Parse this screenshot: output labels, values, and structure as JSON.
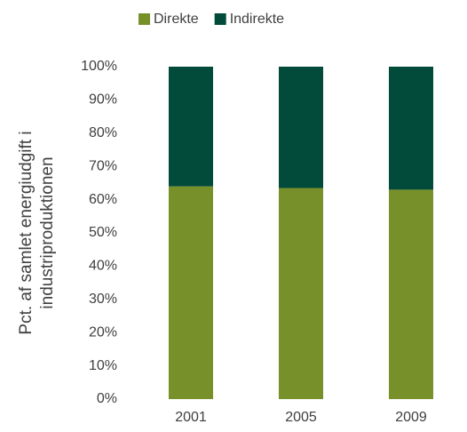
{
  "chart_data": {
    "type": "stacked_bar",
    "ylabel": [
      "Pct. af samlet energiudgift i",
      "industriproduktionen"
    ],
    "categories": [
      "2001",
      "2005",
      "2009"
    ],
    "series": [
      {
        "name": "Direkte",
        "color": "#77902a",
        "values": [
          64,
          63.5,
          63
        ]
      },
      {
        "name": "Indirekte",
        "color": "#024a3a",
        "values": [
          36,
          36.5,
          37
        ]
      }
    ],
    "ylim": [
      0,
      100
    ],
    "yticks": [
      {
        "value": 0,
        "label": "0%"
      },
      {
        "value": 10,
        "label": "10%"
      },
      {
        "value": 20,
        "label": "20%"
      },
      {
        "value": 30,
        "label": "30%"
      },
      {
        "value": 40,
        "label": "40%"
      },
      {
        "value": 50,
        "label": "50%"
      },
      {
        "value": 60,
        "label": "60%"
      },
      {
        "value": 70,
        "label": "70%"
      },
      {
        "value": 80,
        "label": "80%"
      },
      {
        "value": 90,
        "label": "90%"
      },
      {
        "value": 100,
        "label": "100%"
      }
    ],
    "grid": false,
    "legend": "top"
  }
}
